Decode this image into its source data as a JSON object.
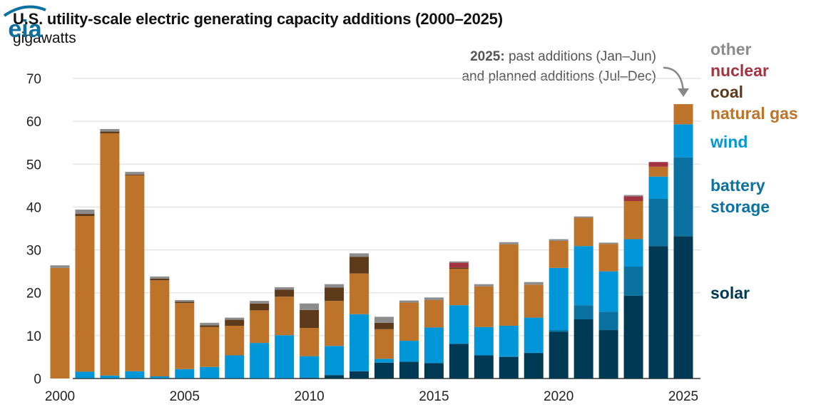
{
  "chart_data": {
    "type": "bar",
    "stacked": true,
    "title": "U.S. utility-scale electric generating capacity additions (2000–2025)",
    "subtitle": "gigawatts",
    "xlabel": "",
    "ylabel": "gigawatts",
    "ylim": [
      0,
      70
    ],
    "yticks": [
      0,
      10,
      20,
      30,
      40,
      50,
      60,
      70
    ],
    "xtick_labels": [
      "2000",
      "2005",
      "2010",
      "2015",
      "2020",
      "2025"
    ],
    "grid": true,
    "legend_position": "right",
    "annotation": {
      "bold": "2025:",
      "line1": " past additions (Jan–Jun)",
      "line2": "and planned additions (Jul–Dec)"
    },
    "categories": [
      2000,
      2001,
      2002,
      2003,
      2004,
      2005,
      2006,
      2007,
      2008,
      2009,
      2010,
      2011,
      2012,
      2013,
      2014,
      2015,
      2016,
      2017,
      2018,
      2019,
      2020,
      2021,
      2022,
      2023,
      2024,
      2025
    ],
    "series": [
      {
        "name": "solar",
        "color": "#003953",
        "values": [
          0,
          0.1,
          0.1,
          0.1,
          0.1,
          0.1,
          0.1,
          0.1,
          0.1,
          0.1,
          0.2,
          0.8,
          1.7,
          3.7,
          3.9,
          3.6,
          8.1,
          5.4,
          5.0,
          5.9,
          10.9,
          13.8,
          11.3,
          19.3,
          30.9,
          33.2
        ]
      },
      {
        "name": "battery storage",
        "color": "#0b71a1",
        "values": [
          0,
          0,
          0,
          0,
          0,
          0,
          0,
          0,
          0,
          0,
          0,
          0,
          0,
          0,
          0,
          0,
          0,
          0,
          0.2,
          0.1,
          0.4,
          3.3,
          4.3,
          6.8,
          11.0,
          18.4
        ]
      },
      {
        "name": "wind",
        "color": "#0096d7",
        "values": [
          0,
          1.5,
          0.6,
          1.6,
          0.4,
          2.1,
          2.6,
          5.3,
          8.2,
          10.0,
          5.0,
          6.8,
          13.3,
          0.9,
          4.9,
          8.3,
          9.0,
          6.6,
          7.1,
          8.2,
          14.5,
          13.8,
          9.4,
          6.4,
          5.2,
          7.7
        ]
      },
      {
        "name": "natural gas",
        "color": "#bd732a",
        "values": [
          25.8,
          36.3,
          56.5,
          45.7,
          22.4,
          15.4,
          9.3,
          6.9,
          7.6,
          9.0,
          6.6,
          10.5,
          9.5,
          6.9,
          8.9,
          6.4,
          8.5,
          9.5,
          19.0,
          7.7,
          6.3,
          6.6,
          6.4,
          8.9,
          2.3,
          4.7
        ]
      },
      {
        "name": "coal",
        "color": "#5d3a1a",
        "values": [
          0,
          0.5,
          0.4,
          0.2,
          0.4,
          0.3,
          0.4,
          1.4,
          1.6,
          1.6,
          4.2,
          3.1,
          3.9,
          1.5,
          0,
          0,
          0.3,
          0,
          0,
          0,
          0,
          0,
          0,
          0,
          0,
          0
        ]
      },
      {
        "name": "nuclear",
        "color": "#a33340",
        "values": [
          0,
          0,
          0,
          0,
          0,
          0,
          0,
          0,
          0,
          0,
          0,
          0,
          0,
          0,
          0,
          0,
          1.1,
          0,
          0,
          0,
          0,
          0,
          0,
          1.1,
          1.1,
          0
        ]
      },
      {
        "name": "other",
        "color": "#8c8c8c",
        "values": [
          0.6,
          1.0,
          0.6,
          0.6,
          0.5,
          0.4,
          0.6,
          0.5,
          0.6,
          0.6,
          1.5,
          0.8,
          0.8,
          1.4,
          0.5,
          0.6,
          0.3,
          0.5,
          0.5,
          0.6,
          0.4,
          0.3,
          0.3,
          0.3,
          0,
          0
        ]
      }
    ]
  },
  "legend": [
    {
      "key": "other",
      "label": "other",
      "color": "#8c8c8c"
    },
    {
      "key": "nuclear",
      "label": "nuclear",
      "color": "#a33340"
    },
    {
      "key": "coal",
      "label": "coal",
      "color": "#5d3a1a"
    },
    {
      "key": "natural_gas",
      "label": "natural gas",
      "color": "#bd732a"
    },
    {
      "key": "wind",
      "label": "wind",
      "color": "#0096d7"
    },
    {
      "key": "battery_storage_1",
      "label": "battery",
      "color": "#0b71a1"
    },
    {
      "key": "battery_storage_2",
      "label": "storage",
      "color": "#0b71a1"
    },
    {
      "key": "solar",
      "label": "solar",
      "color": "#003953"
    }
  ],
  "logo": {
    "text": "eia",
    "color": "#0b71a1"
  }
}
